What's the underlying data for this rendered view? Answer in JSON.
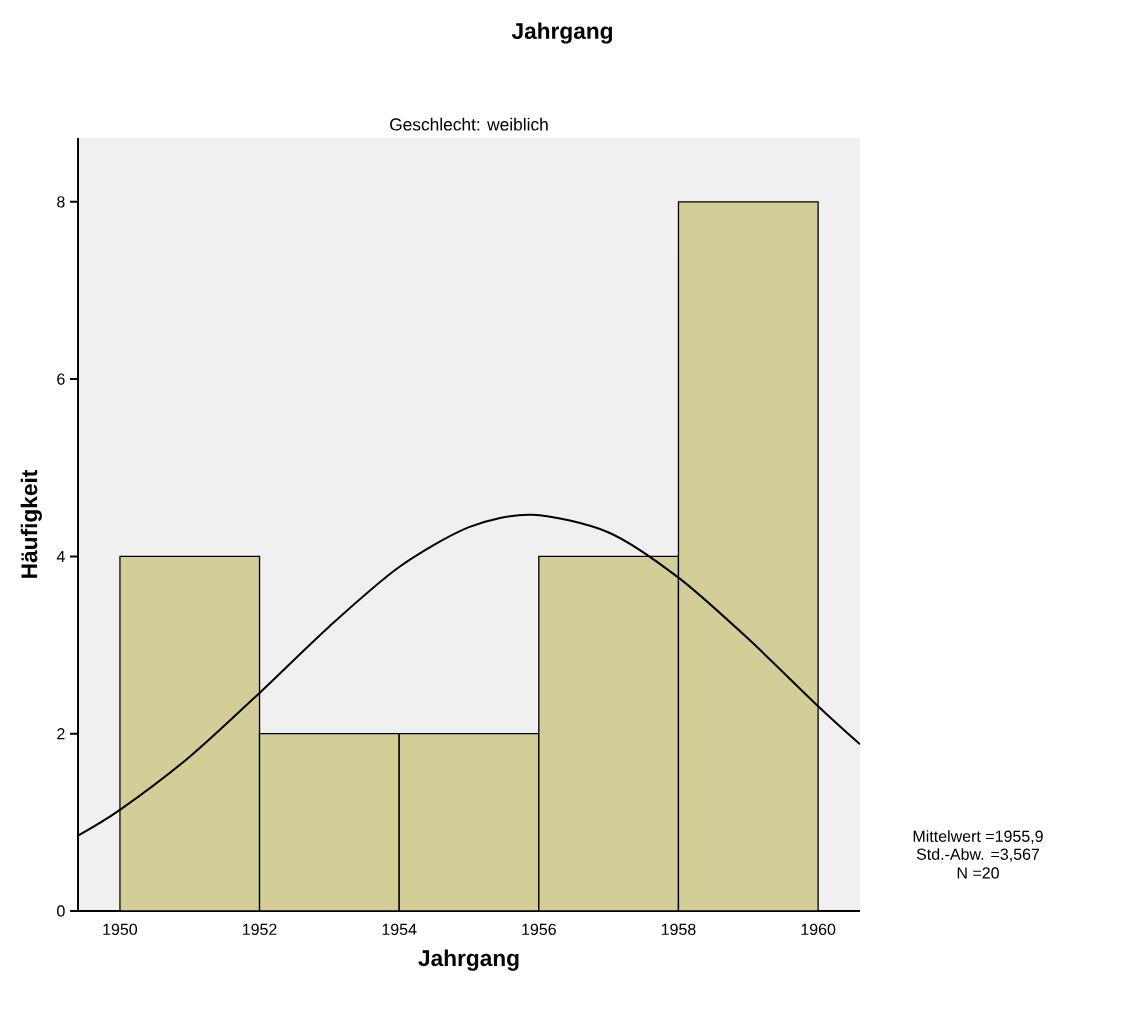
{
  "chart_data": {
    "type": "histogram",
    "title": "Jahrgang",
    "subtitle": "Geschlecht: weiblich",
    "xlabel": "Jahrgang",
    "ylabel": "Häufigkeit",
    "bins": [
      1950,
      1952,
      1954,
      1956,
      1958,
      1960
    ],
    "values": [
      4,
      2,
      2,
      4,
      8
    ],
    "color": "#d3ce97",
    "series": [
      {
        "type": "line",
        "color": "#000000",
        "x": [
          1949.4,
          1950,
          1951,
          1952,
          1953,
          1954,
          1955,
          1955.9,
          1957,
          1958,
          1959,
          1960,
          1960.6
        ],
        "values": [
          0.85,
          1.14,
          1.74,
          2.46,
          3.21,
          3.88,
          4.33,
          4.47,
          4.27,
          3.76,
          3.07,
          2.31,
          1.88
        ]
      }
    ],
    "xlim": [
      1949.4,
      1960.6
    ],
    "ylim": [
      0,
      8.72
    ],
    "xticks": [
      1950,
      1952,
      1954,
      1956,
      1958,
      1960
    ],
    "yticks": [
      0,
      2,
      4,
      6,
      8
    ],
    "grid": false,
    "annotations": [
      "Mittelwert =1955,9",
      "Std.-Abw. =3,567",
      "N =20"
    ]
  }
}
